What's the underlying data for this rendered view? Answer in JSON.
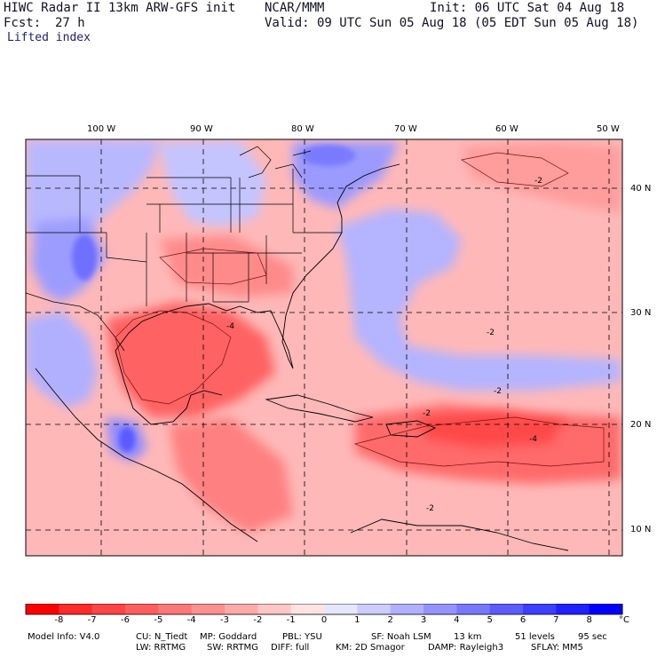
{
  "header": {
    "title_left": "HIWC Radar II 13km ARW-GFS init",
    "org": "NCAR/MMM",
    "init": "Init: 06 UTC Sat 04 Aug 18",
    "fcst_label": "Fcst:",
    "fcst_value": "27 h",
    "valid": "Valid: 09 UTC Sun 05 Aug 18 (05 EDT Sun 05 Aug 18)",
    "field": "Lifted index"
  },
  "map": {
    "lon_labels": [
      "100 W",
      "90 W",
      "80 W",
      "70 W",
      "60 W",
      "50 W"
    ],
    "lat_labels": [
      "40 N",
      "30 N",
      "20 N",
      "10 N"
    ],
    "contour_labels": [
      "-2",
      "-2",
      "-2",
      "-4",
      "-2",
      "-4",
      "-2"
    ]
  },
  "colorbar": {
    "unit": "°C",
    "ticks": [
      "-8",
      "-7",
      "-6",
      "-5",
      "-4",
      "-3",
      "-2",
      "-1",
      "0",
      "1",
      "2",
      "3",
      "4",
      "5",
      "6",
      "7",
      "8"
    ],
    "colors": [
      "#ff0000",
      "#ff2a2a",
      "#ff4545",
      "#ff5e5e",
      "#ff7777",
      "#ff9090",
      "#ffaaaa",
      "#ffc6c6",
      "#ffe3e3",
      "#e6e6ff",
      "#ccccff",
      "#b0b0ff",
      "#9494ff",
      "#7878ff",
      "#5c5cff",
      "#3e3eff",
      "#2020ff",
      "#0000ff"
    ]
  },
  "model_info": {
    "line1": [
      "Model Info: V4.0",
      "CU: N_Tiedt",
      "MP: Goddard",
      "PBL: YSU",
      "SF: Noah LSM",
      "13 km",
      "51 levels",
      "95 sec"
    ],
    "line2": [
      "LW: RRTMG",
      "SW: RRTMG",
      "DIFF: full",
      "KM: 2D Smagor",
      "DAMP: Rayleigh3",
      "SFLAY: MM5"
    ]
  }
}
